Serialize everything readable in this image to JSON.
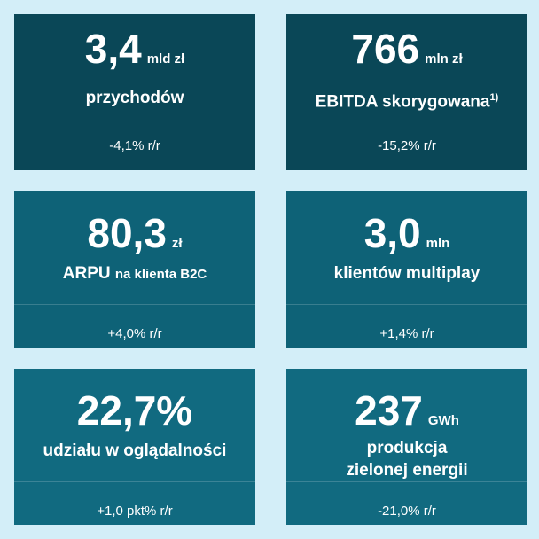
{
  "cards": [
    {
      "value": "3,4",
      "unit": "mld zł",
      "label": "przychodów",
      "change": "-4,1% r/r"
    },
    {
      "value": "766",
      "unit": "mln zł",
      "label": "EBITDA skorygowana",
      "label_note": "1)",
      "change": "-15,2% r/r"
    },
    {
      "value": "80,3",
      "unit": "zł",
      "label": "ARPU",
      "label_small": "na klienta B2C",
      "change": "+4,0% r/r"
    },
    {
      "value": "3,0",
      "unit": "mln",
      "label": "klientów multiplay",
      "change": "+1,4% r/r"
    },
    {
      "value": "22,7%",
      "label": "udziału w oglądalności",
      "change": "+1,0 pkt% r/r"
    },
    {
      "value": "237",
      "unit": "GWh",
      "label_lines": [
        "produkcja",
        "zielonej energii"
      ],
      "change": "-21,0% r/r"
    }
  ]
}
